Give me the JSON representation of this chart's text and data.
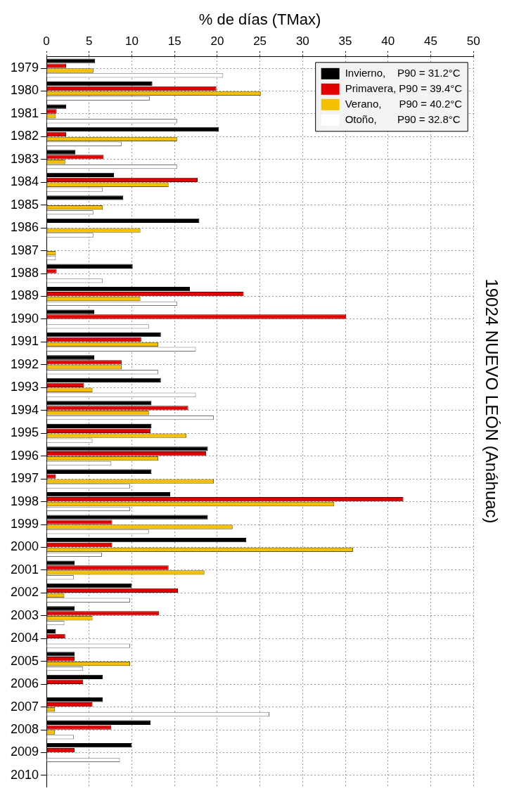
{
  "chart_data": {
    "type": "bar",
    "orientation": "horizontal",
    "title": "19024 NUEVO LEÓN (Anáhuac)",
    "xlabel": "% de días (TMax)",
    "categories": [
      "1979",
      "1980",
      "1981",
      "1982",
      "1983",
      "1984",
      "1985",
      "1986",
      "1987",
      "1988",
      "1989",
      "1990",
      "1991",
      "1992",
      "1993",
      "1994",
      "1995",
      "1996",
      "1997",
      "1998",
      "1999",
      "2000",
      "2001",
      "2002",
      "2003",
      "2004",
      "2005",
      "2006",
      "2007",
      "2008",
      "2009",
      "2010"
    ],
    "series": [
      {
        "name": "Invierno,    P90 = 31.2°C",
        "color": "#000000",
        "values": [
          5.7,
          12.4,
          2.3,
          20.2,
          3.4,
          7.9,
          9.0,
          17.9,
          0,
          10.1,
          16.8,
          5.6,
          13.4,
          5.6,
          13.4,
          12.3,
          12.3,
          18.9,
          12.3,
          14.5,
          18.9,
          23.4,
          3.3,
          10.0,
          3.3,
          1.1,
          3.3,
          6.6,
          6.6,
          12.2,
          10.0,
          null
        ]
      },
      {
        "name": "Primavera, P90 = 39.4°C",
        "color": "#e00000",
        "values": [
          2.3,
          19.9,
          1.2,
          2.3,
          6.7,
          17.7,
          0,
          0,
          0,
          1.2,
          23.1,
          35.1,
          11.1,
          8.8,
          4.4,
          16.6,
          12.2,
          18.7,
          1.1,
          41.8,
          7.7,
          7.7,
          14.3,
          15.4,
          13.2,
          2.2,
          3.3,
          4.3,
          5.4,
          7.6,
          3.3,
          null
        ]
      },
      {
        "name": "Verano,      P90 = 40.2°C",
        "color": "#f5c000",
        "values": [
          5.5,
          25.1,
          1.1,
          15.3,
          2.2,
          14.3,
          6.6,
          11.0,
          1.1,
          0,
          11.0,
          0,
          13.1,
          8.8,
          5.4,
          12.0,
          16.4,
          13.1,
          19.6,
          33.7,
          21.8,
          35.9,
          18.5,
          2.1,
          5.4,
          0,
          9.8,
          0,
          1.0,
          1.0,
          0,
          null
        ]
      },
      {
        "name": "Otoño,       P90 = 32.8°C",
        "color": "#ffffff",
        "values": [
          20.7,
          12.1,
          15.3,
          8.8,
          15.3,
          6.6,
          5.5,
          5.5,
          1.1,
          6.6,
          15.3,
          12.0,
          17.5,
          13.1,
          17.5,
          19.6,
          5.4,
          7.6,
          9.8,
          9.8,
          12.0,
          6.5,
          3.2,
          9.8,
          2.1,
          9.8,
          4.3,
          0,
          26.1,
          3.2,
          8.6,
          null
        ]
      }
    ],
    "xlim": [
      0,
      50
    ],
    "xticks": [
      0,
      5,
      10,
      15,
      20,
      25,
      30,
      35,
      40,
      45,
      50
    ],
    "grid": true,
    "legend": "top right"
  }
}
